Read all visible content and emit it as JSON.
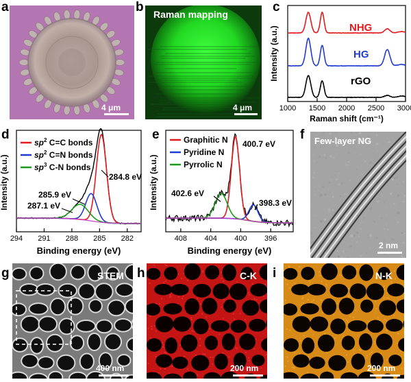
{
  "panel_labels": {
    "a": "a",
    "b": "b",
    "c": "c",
    "d": "d",
    "e": "e",
    "f": "f",
    "g": "g",
    "h": "h",
    "i": "i"
  },
  "panel_a": {
    "scale": "4 μm"
  },
  "panel_b": {
    "title": "Raman mapping",
    "scale": "4 μm"
  },
  "panel_f": {
    "title": "Few-layer NG",
    "scale": "2 nm"
  },
  "panel_g": {
    "title": "STEM",
    "scale": "400 nm"
  },
  "panel_h": {
    "title": "C-K",
    "scale": "200 nm"
  },
  "panel_i": {
    "title": "N-K",
    "scale": "200 nm"
  },
  "colors": {
    "red": "#e41a1c",
    "blue": "#1f3bd1",
    "green": "#1a9a1a",
    "black": "#000000"
  },
  "chart_data": [
    {
      "id": "c",
      "type": "line",
      "xlabel": "Raman shift (cm⁻¹)",
      "ylabel": "Intensity (a.u.)",
      "xlim": [
        1000,
        3000
      ],
      "xticks": [
        "1000",
        "1500",
        "2000",
        "2500",
        "3000"
      ],
      "series": [
        {
          "name": "NHG",
          "color": "#e41a1c"
        },
        {
          "name": "HG",
          "color": "#1f3bd1"
        },
        {
          "name": "rGO",
          "color": "#000000"
        }
      ]
    },
    {
      "id": "d",
      "type": "line",
      "xlabel": "Binding energy (eV)",
      "ylabel": "Intensity (a.u.)",
      "xlim": [
        294,
        280.5
      ],
      "xticks": [
        "294",
        "291",
        "288",
        "285",
        "282"
      ],
      "legend": [
        {
          "italic": "sp",
          "sup": "2",
          "rest": " C=C bonds",
          "color": "#e41a1c"
        },
        {
          "italic": "sp",
          "sup": "2",
          "rest": " C=N bonds",
          "color": "#1f3bd1"
        },
        {
          "italic": "sp",
          "sup": "3",
          "rest": " C-N bonds",
          "color": "#1a9a1a"
        }
      ],
      "peaks": [
        {
          "label": "284.8 eV",
          "center": 284.8
        },
        {
          "label": "285.9 eV",
          "center": 285.9
        },
        {
          "label": "287.1 eV",
          "center": 287.1
        }
      ]
    },
    {
      "id": "e",
      "type": "line",
      "xlabel": "Binding energy (eV)",
      "ylabel": "Intensity (a.u.)",
      "xlim": [
        410,
        393
      ],
      "xticks": [
        "408",
        "404",
        "400",
        "396"
      ],
      "legend": [
        {
          "name": "Graphitic N",
          "color": "#e41a1c"
        },
        {
          "name": "Pyridine N",
          "color": "#1f3bd1"
        },
        {
          "name": "Pyrrolic N",
          "color": "#1a9a1a"
        }
      ],
      "peaks": [
        {
          "label": "400.7 eV",
          "center": 400.7
        },
        {
          "label": "402.6 eV",
          "center": 402.6
        },
        {
          "label": "398.3 eV",
          "center": 398.3
        }
      ]
    }
  ]
}
